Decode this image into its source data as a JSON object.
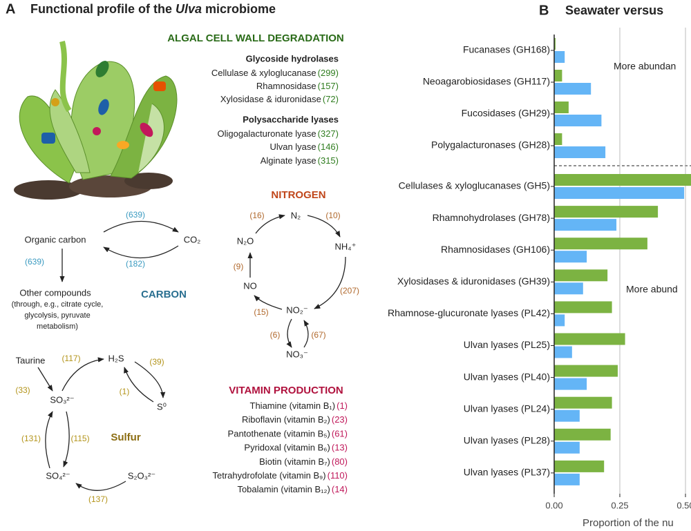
{
  "panel_a": {
    "label": "A",
    "title": [
      "Functional profile of the",
      "Ulva",
      "microbiome"
    ],
    "algal": {
      "heading": "ALGAL CELL WALL DEGRADATION",
      "groups": [
        {
          "title": "Glycoside hydrolases",
          "items": [
            [
              "Cellulase & xyloglucanase",
              "(299)"
            ],
            [
              "Rhamnosidase",
              "(157)"
            ],
            [
              "Xylosidase & iduronidase",
              "(72)"
            ]
          ]
        },
        {
          "title": "Polysaccharide lyases",
          "items": [
            [
              "Oligogalacturonate lyase",
              "(327)"
            ],
            [
              "Ulvan lyase",
              "(146)"
            ],
            [
              "Alginate lyase",
              "(315)"
            ]
          ]
        }
      ]
    },
    "nitrogen": {
      "heading": "NITROGEN",
      "nodes": [
        "N₂",
        "NH₄⁺",
        "NO₂⁻",
        "NO₃⁻",
        "NO",
        "N₂O"
      ],
      "counts": [
        "(16)",
        "(10)",
        "(9)",
        "(207)",
        "(15)",
        "(6)",
        "(67)"
      ]
    },
    "carbon": {
      "heading": "CARBON",
      "nodes": [
        "Organic carbon",
        "CO₂",
        "Other compounds"
      ],
      "note": [
        "(through,  e.g., citrate cycle,",
        "glycolysis, pyruvate",
        "metabolism)"
      ],
      "counts": [
        "(639)",
        "(182)",
        "(639)"
      ]
    },
    "sulfur": {
      "heading": "Sulfur",
      "nodes": [
        "Taurine",
        "H₂S",
        "SO₃²⁻",
        "S⁰",
        "SO₄²⁻",
        "S₂O₃²⁻"
      ],
      "counts": [
        "(117)",
        "(39)",
        "(33)",
        "(1)",
        "(131)",
        "(115)",
        "(137)"
      ]
    },
    "vitamins": {
      "heading": "VITAMIN PRODUCTION",
      "items": [
        [
          "Thiamine (vitamin B₁)",
          "(1)"
        ],
        [
          "Riboflavin (vitamin B₂)",
          "(23)"
        ],
        [
          "Pantothenate (vitamin B₅)",
          "(61)"
        ],
        [
          "Pyridoxal (vitamin B₆)",
          "(13)"
        ],
        [
          "Biotin (vitamin B₇)",
          "(80)"
        ],
        [
          "Tetrahydrofolate (vitamin B₉)",
          "(110)"
        ],
        [
          "Tobalamin (vitamin B₁₂)",
          "(14)"
        ]
      ]
    }
  },
  "chart_data": {
    "type": "barh",
    "label": "B",
    "title": "Seawater versus",
    "x_label": "Proportion of the nu",
    "annotations": [
      "More abundan",
      "More abund"
    ],
    "categories": [
      "Fucanases (GH168)",
      "Neoagarobiosidases (GH117)",
      "Fucosidases (GH29)",
      "Polygalacturonases (GH28)",
      "Cellulases & xyloglucanases (GH5)",
      "Rhamnohydrolases (GH78)",
      "Rhamnosidases (GH106)",
      "Xylosidases & iduronidases (GH39)",
      "Rhamnose-glucuronate lyases (PL42)",
      "Ulvan lyases (PL25)",
      "Ulvan lyases (PL40)",
      "Ulvan lyases (PL24)",
      "Ulvan lyases (PL28)",
      "Ulvan lyases (PL37)"
    ],
    "series": [
      {
        "color": "#7cb342",
        "values": [
          0.005,
          0.03,
          0.055,
          0.03,
          0.55,
          0.395,
          0.355,
          0.203,
          0.22,
          0.27,
          0.242,
          0.22,
          0.215,
          0.19
        ]
      },
      {
        "color": "#64b5f6",
        "values": [
          0.04,
          0.14,
          0.18,
          0.195,
          0.495,
          0.237,
          0.124,
          0.11,
          0.04,
          0.068,
          0.124,
          0.097,
          0.097,
          0.097
        ]
      }
    ],
    "xlim": [
      0,
      0.52
    ],
    "xticks": [
      {
        "value": 0,
        "label": "0.00"
      },
      {
        "value": 0.25,
        "label": "0.25"
      },
      {
        "value": 0.5,
        "label": "0.50"
      }
    ],
    "grid": true
  }
}
